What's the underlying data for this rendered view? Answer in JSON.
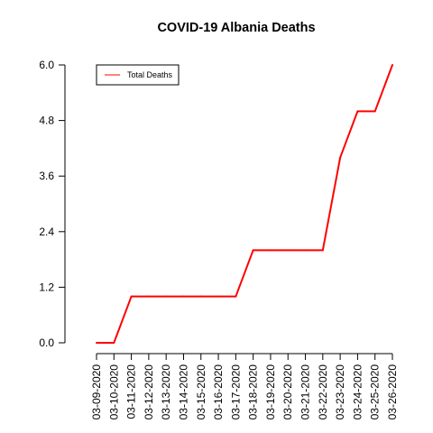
{
  "chart_data": {
    "type": "line",
    "title": "COVID-19 Albania Deaths",
    "xlabel": "",
    "ylabel": "",
    "x": [
      "03-09-2020",
      "03-10-2020",
      "03-11-2020",
      "03-12-2020",
      "03-13-2020",
      "03-14-2020",
      "03-15-2020",
      "03-16-2020",
      "03-17-2020",
      "03-18-2020",
      "03-19-2020",
      "03-20-2020",
      "03-21-2020",
      "03-22-2020",
      "03-23-2020",
      "03-24-2020",
      "03-25-2020",
      "03-26-2020"
    ],
    "series": [
      {
        "name": "Total Deaths",
        "color": "#ff0000",
        "values": [
          0,
          0,
          1,
          1,
          1,
          1,
          1,
          1,
          1,
          2,
          2,
          2,
          2,
          2,
          4,
          5,
          5,
          6
        ]
      }
    ],
    "yticks": [
      "0.0",
      "1.2",
      "2.4",
      "3.6",
      "4.8",
      "6.0"
    ],
    "ylim": [
      0,
      6
    ],
    "grid": false,
    "legend_position": "top-left"
  }
}
